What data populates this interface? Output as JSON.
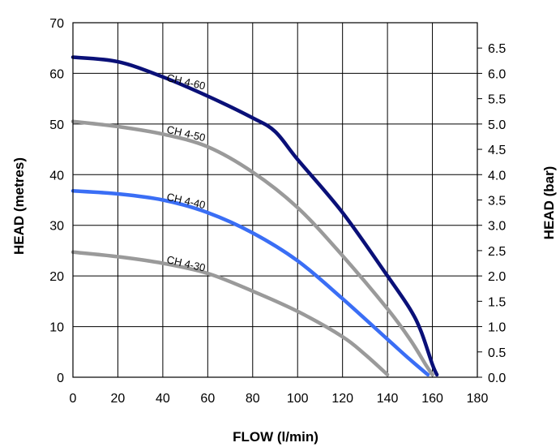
{
  "chart_data": {
    "type": "line",
    "xlabel": "FLOW (l/min)",
    "ylabel": "HEAD (metres)",
    "y2label": "HEAD (bar)",
    "xlim": [
      0,
      180
    ],
    "ylim": [
      0,
      70
    ],
    "y2lim": [
      0,
      7
    ],
    "grid": true,
    "x_ticks": [
      "0",
      "20",
      "40",
      "60",
      "80",
      "100",
      "120",
      "140",
      "160",
      "180"
    ],
    "y_ticks": [
      "0",
      "10",
      "20",
      "30",
      "40",
      "50",
      "60",
      "70"
    ],
    "y2_ticks": [
      "0.0",
      "0.5",
      "1.0",
      "1.5",
      "2.0",
      "2.5",
      "3.0",
      "3.5",
      "4.0",
      "4.5",
      "5.0",
      "5.5",
      "6.0",
      "6.5"
    ],
    "series": [
      {
        "name": "CH 4-60",
        "color": "#0a1078",
        "points": [
          [
            0,
            63.2
          ],
          [
            20,
            62.3
          ],
          [
            40,
            59.3
          ],
          [
            60,
            55.5
          ],
          [
            80,
            51.2
          ],
          [
            90,
            48.5
          ],
          [
            100,
            43.0
          ],
          [
            120,
            32.5
          ],
          [
            140,
            20.0
          ],
          [
            150,
            13.5
          ],
          [
            155,
            9.0
          ],
          [
            160,
            2.5
          ],
          [
            162,
            0.5
          ]
        ]
      },
      {
        "name": "CH 4-50",
        "color": "#9a9a9a",
        "points": [
          [
            0,
            50.5
          ],
          [
            20,
            49.5
          ],
          [
            40,
            48.0
          ],
          [
            60,
            45.5
          ],
          [
            80,
            40.5
          ],
          [
            100,
            33.5
          ],
          [
            120,
            24.0
          ],
          [
            140,
            13.5
          ],
          [
            150,
            7.5
          ],
          [
            157,
            2.5
          ],
          [
            160,
            0.5
          ]
        ]
      },
      {
        "name": "CH 4-40",
        "color": "#3a6ef5",
        "points": [
          [
            0,
            36.8
          ],
          [
            20,
            36.2
          ],
          [
            40,
            35.0
          ],
          [
            60,
            32.5
          ],
          [
            80,
            28.5
          ],
          [
            100,
            23.0
          ],
          [
            120,
            15.5
          ],
          [
            140,
            7.5
          ],
          [
            150,
            3.5
          ],
          [
            158,
            0.5
          ]
        ]
      },
      {
        "name": "CH 4-30",
        "color": "#9a9a9a",
        "points": [
          [
            0,
            24.7
          ],
          [
            20,
            23.8
          ],
          [
            40,
            22.5
          ],
          [
            60,
            20.5
          ],
          [
            80,
            17.0
          ],
          [
            100,
            13.0
          ],
          [
            120,
            8.0
          ],
          [
            130,
            4.5
          ],
          [
            140,
            0.5
          ]
        ]
      }
    ],
    "curve_labels": [
      {
        "text": "CH 4-60",
        "x": 41.5,
        "y": 58.5
      },
      {
        "text": "CH 4-50",
        "x": 41.5,
        "y": 48.3
      },
      {
        "text": "CH 4-40",
        "x": 41.5,
        "y": 35.0
      },
      {
        "text": "CH 4-30",
        "x": 41.5,
        "y": 22.6
      }
    ]
  }
}
